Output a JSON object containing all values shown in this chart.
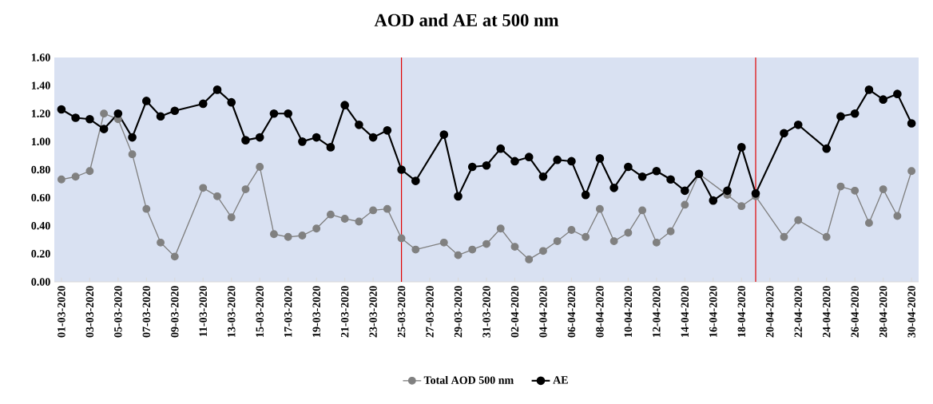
{
  "chart_data": {
    "type": "line",
    "title": "AOD and AE at 500 nm",
    "x": [
      "2020-03-01",
      "2020-03-02",
      "2020-03-03",
      "2020-03-04",
      "2020-03-05",
      "2020-03-06",
      "2020-03-07",
      "2020-03-08",
      "2020-03-09",
      "2020-03-11",
      "2020-03-12",
      "2020-03-13",
      "2020-03-14",
      "2020-03-15",
      "2020-03-16",
      "2020-03-17",
      "2020-03-18",
      "2020-03-19",
      "2020-03-20",
      "2020-03-21",
      "2020-03-22",
      "2020-03-23",
      "2020-03-24",
      "2020-03-25",
      "2020-03-26",
      "2020-03-28",
      "2020-03-29",
      "2020-03-30",
      "2020-03-31",
      "2020-04-01",
      "2020-04-02",
      "2020-04-03",
      "2020-04-04",
      "2020-04-05",
      "2020-04-06",
      "2020-04-07",
      "2020-04-08",
      "2020-04-09",
      "2020-04-10",
      "2020-04-11",
      "2020-04-12",
      "2020-04-13",
      "2020-04-14",
      "2020-04-15",
      "2020-04-16",
      "2020-04-17",
      "2020-04-18",
      "2020-04-19",
      "2020-04-21",
      "2020-04-22",
      "2020-04-24",
      "2020-04-25",
      "2020-04-26",
      "2020-04-27",
      "2020-04-28",
      "2020-04-29",
      "2020-04-30"
    ],
    "series": [
      {
        "name": "Total AOD 500 nm",
        "color": "#808080",
        "values": [
          0.73,
          0.75,
          0.79,
          1.2,
          1.16,
          0.91,
          0.52,
          0.28,
          0.18,
          0.67,
          0.61,
          0.46,
          0.66,
          0.82,
          0.34,
          0.32,
          0.33,
          0.38,
          0.48,
          0.45,
          0.43,
          0.51,
          0.52,
          0.31,
          0.23,
          0.28,
          0.19,
          0.23,
          0.27,
          0.38,
          0.25,
          0.16,
          0.22,
          0.29,
          0.37,
          0.32,
          0.52,
          0.29,
          0.35,
          0.51,
          0.28,
          0.36,
          0.55,
          0.77,
          null,
          0.62,
          0.54,
          0.61,
          0.32,
          0.44,
          0.32,
          0.68,
          0.65,
          0.42,
          0.66,
          0.47,
          0.79
        ]
      },
      {
        "name": "AE",
        "color": "#000000",
        "values": [
          1.23,
          1.17,
          1.16,
          1.09,
          1.2,
          1.03,
          1.29,
          1.18,
          1.22,
          1.27,
          1.37,
          1.28,
          1.01,
          1.03,
          1.2,
          1.2,
          1.0,
          1.03,
          0.96,
          1.26,
          1.12,
          1.03,
          1.08,
          0.8,
          0.72,
          1.05,
          0.61,
          0.82,
          0.83,
          0.95,
          0.86,
          0.89,
          0.75,
          0.87,
          0.86,
          0.62,
          0.88,
          0.67,
          0.82,
          0.75,
          0.79,
          0.73,
          0.65,
          0.77,
          0.58,
          0.65,
          0.96,
          0.63,
          1.06,
          1.12,
          0.95,
          1.18,
          1.2,
          1.37,
          1.3,
          1.34,
          1.13
        ]
      }
    ],
    "xlim": [
      "2020-02-29T12:00",
      "2020-04-30T12:00"
    ],
    "xticks": [
      {
        "value": "2020-03-01",
        "label": "01-03-2020"
      },
      {
        "value": "2020-03-03",
        "label": "03-03-2020"
      },
      {
        "value": "2020-03-05",
        "label": "05-03-2020"
      },
      {
        "value": "2020-03-07",
        "label": "07-03-2020"
      },
      {
        "value": "2020-03-09",
        "label": "09-03-2020"
      },
      {
        "value": "2020-03-11",
        "label": "11-03-2020"
      },
      {
        "value": "2020-03-13",
        "label": "13-03-2020"
      },
      {
        "value": "2020-03-15",
        "label": "15-03-2020"
      },
      {
        "value": "2020-03-17",
        "label": "17-03-2020"
      },
      {
        "value": "2020-03-19",
        "label": "19-03-2020"
      },
      {
        "value": "2020-03-21",
        "label": "21-03-2020"
      },
      {
        "value": "2020-03-23",
        "label": "23-03-2020"
      },
      {
        "value": "2020-03-25",
        "label": "25-03-2020"
      },
      {
        "value": "2020-03-27",
        "label": "27-03-2020"
      },
      {
        "value": "2020-03-29",
        "label": "29-03-2020"
      },
      {
        "value": "2020-03-31",
        "label": "31-03-2020"
      },
      {
        "value": "2020-04-02",
        "label": "02-04-2020"
      },
      {
        "value": "2020-04-04",
        "label": "04-04-2020"
      },
      {
        "value": "2020-04-06",
        "label": "06-04-2020"
      },
      {
        "value": "2020-04-08",
        "label": "08-04-2020"
      },
      {
        "value": "2020-04-10",
        "label": "10-04-2020"
      },
      {
        "value": "2020-04-12",
        "label": "12-04-2020"
      },
      {
        "value": "2020-04-14",
        "label": "14-04-2020"
      },
      {
        "value": "2020-04-16",
        "label": "16-04-2020"
      },
      {
        "value": "2020-04-18",
        "label": "18-04-2020"
      },
      {
        "value": "2020-04-20",
        "label": "20-04-2020"
      },
      {
        "value": "2020-04-22",
        "label": "22-04-2020"
      },
      {
        "value": "2020-04-24",
        "label": "24-04-2020"
      },
      {
        "value": "2020-04-26",
        "label": "26-04-2020"
      },
      {
        "value": "2020-04-28",
        "label": "28-04-2020"
      },
      {
        "value": "2020-04-30",
        "label": "30-04-2020"
      }
    ],
    "ylim": [
      0,
      1.6
    ],
    "yticks": [
      {
        "value": 0,
        "label": "0.00"
      },
      {
        "value": 0.2,
        "label": "0.20"
      },
      {
        "value": 0.4,
        "label": "0.40"
      },
      {
        "value": 0.6,
        "label": "0.60"
      },
      {
        "value": 0.8,
        "label": "0.80"
      },
      {
        "value": 1.0,
        "label": "1.00"
      },
      {
        "value": 1.2,
        "label": "1.20"
      },
      {
        "value": 1.4,
        "label": "1.40"
      },
      {
        "value": 1.6,
        "label": "1.60"
      }
    ],
    "ref_lines": [
      {
        "axis": "x",
        "value": "2020-03-25",
        "color": "#e00000"
      },
      {
        "axis": "x",
        "value": "2020-04-19",
        "color": "#e00000"
      }
    ],
    "grid": false,
    "legend": "bottom",
    "marker": "circle",
    "line_style": "solid"
  }
}
